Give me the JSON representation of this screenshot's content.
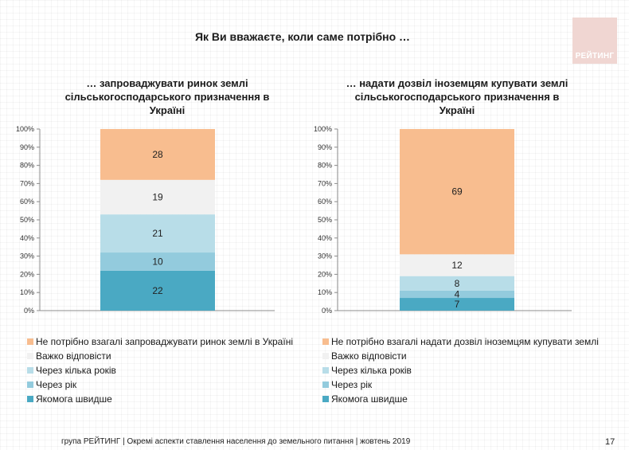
{
  "logo_text": "РЕЙТИНГ",
  "title": "Як Ви вважаєте, коли саме потрібно …",
  "footer": "група РЕЙТИНГ |  Окремі аспекти ставлення населення до земельного питання  |  жовтень  2019",
  "page_number": "17",
  "chart_data": [
    {
      "type": "bar",
      "stacked": true,
      "title": "… запроваджувати ринок землі сільськогосподарського призначення в Україні",
      "title_lines": [
        "… запроваджувати ринок землі",
        "сільськогосподарського призначення в",
        "Україні"
      ],
      "yticks": [
        "0%",
        "10%",
        "20%",
        "30%",
        "40%",
        "50%",
        "60%",
        "70%",
        "80%",
        "90%",
        "100%"
      ],
      "ylim": [
        0,
        100
      ],
      "series": [
        {
          "name": "Якомога швидше",
          "value": 22,
          "color": "#4aa9c3"
        },
        {
          "name": "Через рік",
          "value": 10,
          "color": "#93cbdd"
        },
        {
          "name": "Через кілька років",
          "value": 21,
          "color": "#b8dde8"
        },
        {
          "name": "Важко відповісти",
          "value": 19,
          "color": "#f1f1f1"
        },
        {
          "name": "Не потрібно взагалі запроваджувати ринок землі в Україні",
          "value": 28,
          "color": "#f8bd8f"
        }
      ]
    },
    {
      "type": "bar",
      "stacked": true,
      "title": "… надати дозвіл іноземцям купувати землі сільськогосподарського призначення в Україні",
      "title_lines": [
        "… надати дозвіл іноземцям купувати землі",
        "сільськогосподарського призначення в",
        "Україні"
      ],
      "yticks": [
        "0%",
        "10%",
        "20%",
        "30%",
        "40%",
        "50%",
        "60%",
        "70%",
        "80%",
        "90%",
        "100%"
      ],
      "ylim": [
        0,
        100
      ],
      "series": [
        {
          "name": "Якомога швидше",
          "value": 7,
          "color": "#4aa9c3"
        },
        {
          "name": "Через рік",
          "value": 4,
          "color": "#93cbdd"
        },
        {
          "name": "Через кілька років",
          "value": 8,
          "color": "#b8dde8"
        },
        {
          "name": "Важко відповісти",
          "value": 12,
          "color": "#f1f1f1"
        },
        {
          "name": "Не потрібно взагалі надати дозвіл іноземцям купувати землі",
          "value": 69,
          "color": "#f8bd8f"
        }
      ]
    }
  ]
}
